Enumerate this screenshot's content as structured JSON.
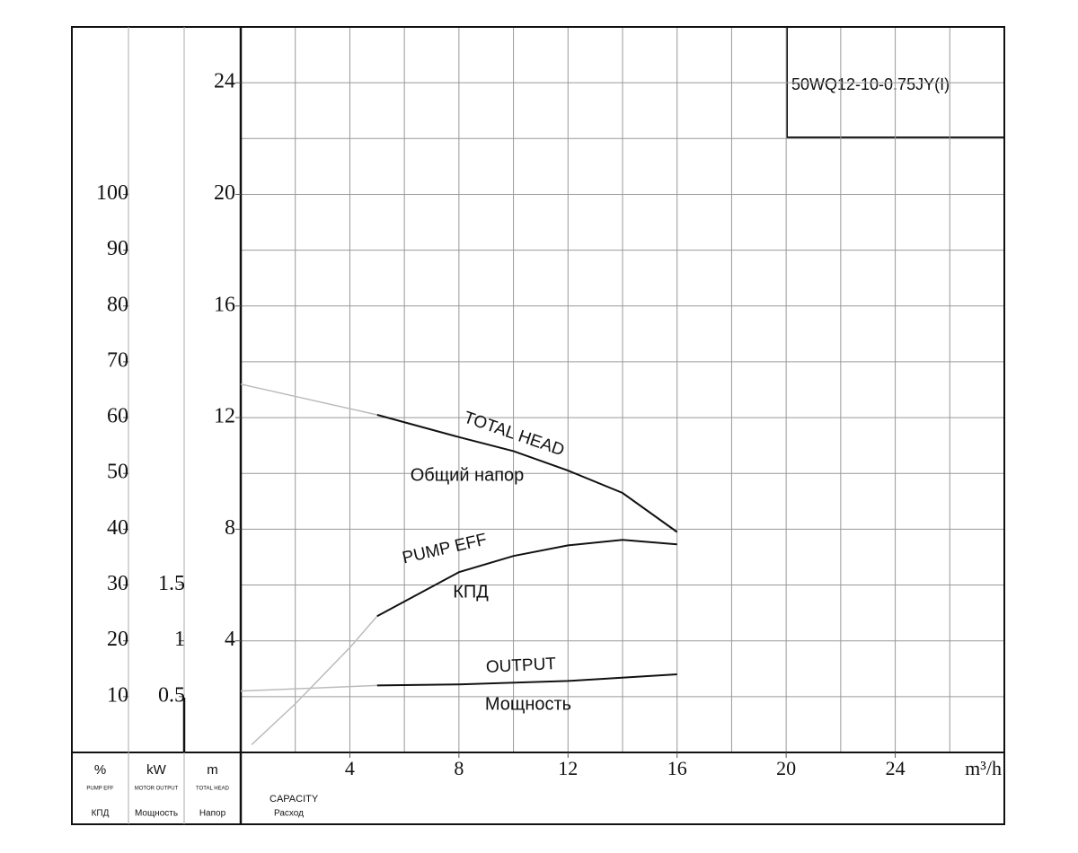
{
  "chart_data": {
    "type": "line",
    "model": "50WQ12-10-0.75JY(I)",
    "x_label": "CAPACITY",
    "x_label_ru": "Расход",
    "x_unit": "m³/h",
    "xlim": [
      0,
      28
    ],
    "xticks": [
      4,
      8,
      12,
      16,
      20,
      24
    ],
    "xgrid": [
      2,
      4,
      6,
      8,
      10,
      12,
      14,
      16,
      18,
      20,
      22,
      24,
      26
    ],
    "axes": [
      {
        "id": "eff",
        "unit": "%",
        "name": "PUMP EFF",
        "name_ru": "КПД",
        "ylim": [
          0,
          130
        ],
        "yticks": [
          10,
          20,
          30,
          40,
          50,
          60,
          70,
          80,
          90,
          100
        ]
      },
      {
        "id": "power",
        "unit": "kW",
        "name": "MOTOR OUTPUT",
        "name_ru": "Мощность",
        "ylim": [
          0,
          6.5
        ],
        "yticks": [
          0.5,
          1,
          1.5
        ]
      },
      {
        "id": "head",
        "unit": "m",
        "name": "TOTAL HEAD",
        "name_ru": "Напор",
        "ylim": [
          0,
          26
        ],
        "yticks": [
          4,
          8,
          12,
          16,
          20,
          24
        ],
        "ygrid": [
          2,
          4,
          6,
          8,
          10,
          12,
          14,
          16,
          18,
          20,
          22,
          24
        ]
      }
    ],
    "series": [
      {
        "name": "TOTAL HEAD",
        "name_ru": "Общий напор",
        "axis": "head",
        "color": "#111111",
        "x": [
          5,
          8,
          10,
          12,
          14,
          16
        ],
        "values": [
          12.1,
          11.3,
          10.8,
          10.1,
          9.3,
          7.9
        ],
        "extension": {
          "color": "#bbbbbb",
          "x": [
            0,
            5
          ],
          "values": [
            13.2,
            12.1
          ]
        }
      },
      {
        "name": "PUMP EFF",
        "name_ru": "КПД",
        "axis": "eff",
        "color": "#111111",
        "x": [
          5,
          8,
          10,
          12,
          14,
          16
        ],
        "values": [
          24.4,
          32.3,
          35.2,
          37.1,
          38.1,
          37.3
        ],
        "extension": {
          "color": "#bbbbbb",
          "x": [
            0.4,
            2,
            4,
            5
          ],
          "values": [
            1.4,
            8.7,
            18.8,
            24.4
          ]
        }
      },
      {
        "name": "OUTPUT",
        "name_ru": "Мощность",
        "axis": "power",
        "color": "#111111",
        "x": [
          5,
          8,
          12,
          16
        ],
        "values": [
          0.6,
          0.61,
          0.64,
          0.7
        ],
        "extension": {
          "color": "#bbbbbb",
          "x": [
            0,
            5
          ],
          "values": [
            0.55,
            0.6
          ]
        }
      }
    ]
  }
}
